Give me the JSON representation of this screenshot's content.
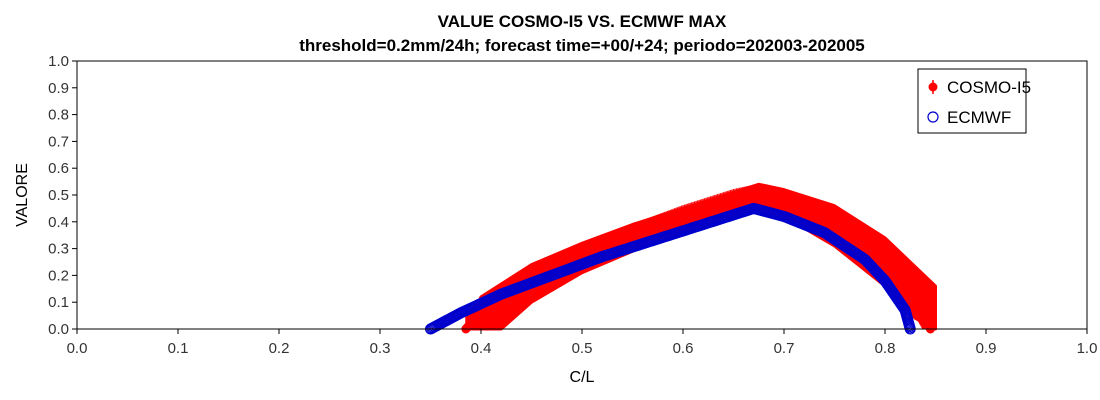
{
  "chart_data": {
    "type": "scatter",
    "title": "VALUE COSMO-I5 VS. ECMWF MAX",
    "subtitle": "threshold=0.2mm/24h; forecast time=+00/+24; periodo=202003-202005",
    "xlabel": "C/L",
    "ylabel": "VALORE",
    "xlim": [
      0.0,
      1.0
    ],
    "ylim": [
      0.0,
      1.0
    ],
    "xticks": [
      "0.0",
      "0.1",
      "0.2",
      "0.3",
      "0.4",
      "0.5",
      "0.6",
      "0.7",
      "0.8",
      "0.9",
      "1.0"
    ],
    "yticks": [
      "0.0",
      "0.1",
      "0.2",
      "0.3",
      "0.4",
      "0.5",
      "0.6",
      "0.7",
      "0.8",
      "0.9",
      "1.0"
    ],
    "grid": false,
    "legend_position": "top-right",
    "series": [
      {
        "name": "COSMO-I5",
        "color": "#ff0000",
        "marker": "filled-circle-with-errorbar",
        "points": [
          {
            "x": 0.385,
            "y": 0.0
          },
          {
            "x": 0.4,
            "y": 0.06
          },
          {
            "x": 0.42,
            "y": 0.11
          },
          {
            "x": 0.45,
            "y": 0.18
          },
          {
            "x": 0.5,
            "y": 0.27
          },
          {
            "x": 0.55,
            "y": 0.34
          },
          {
            "x": 0.6,
            "y": 0.41
          },
          {
            "x": 0.65,
            "y": 0.47
          },
          {
            "x": 0.675,
            "y": 0.49
          },
          {
            "x": 0.7,
            "y": 0.46
          },
          {
            "x": 0.75,
            "y": 0.38
          },
          {
            "x": 0.8,
            "y": 0.24
          },
          {
            "x": 0.83,
            "y": 0.1
          },
          {
            "x": 0.845,
            "y": 0.0
          }
        ],
        "upper": [
          {
            "x": 0.385,
            "y": 0.0
          },
          {
            "x": 0.4,
            "y": 0.12
          },
          {
            "x": 0.45,
            "y": 0.24
          },
          {
            "x": 0.5,
            "y": 0.32
          },
          {
            "x": 0.55,
            "y": 0.39
          },
          {
            "x": 0.6,
            "y": 0.45
          },
          {
            "x": 0.65,
            "y": 0.51
          },
          {
            "x": 0.675,
            "y": 0.54
          },
          {
            "x": 0.7,
            "y": 0.52
          },
          {
            "x": 0.75,
            "y": 0.46
          },
          {
            "x": 0.8,
            "y": 0.34
          },
          {
            "x": 0.85,
            "y": 0.16
          }
        ],
        "lower": [
          {
            "x": 0.42,
            "y": 0.0
          },
          {
            "x": 0.45,
            "y": 0.1
          },
          {
            "x": 0.5,
            "y": 0.21
          },
          {
            "x": 0.55,
            "y": 0.29
          },
          {
            "x": 0.6,
            "y": 0.36
          },
          {
            "x": 0.65,
            "y": 0.43
          },
          {
            "x": 0.675,
            "y": 0.46
          },
          {
            "x": 0.7,
            "y": 0.42
          },
          {
            "x": 0.75,
            "y": 0.31
          },
          {
            "x": 0.8,
            "y": 0.16
          },
          {
            "x": 0.83,
            "y": 0.04
          },
          {
            "x": 0.85,
            "y": 0.0
          }
        ]
      },
      {
        "name": "ECMWF",
        "color": "#0000cc",
        "marker": "open-circle",
        "points": [
          {
            "x": 0.35,
            "y": 0.0
          },
          {
            "x": 0.38,
            "y": 0.06
          },
          {
            "x": 0.42,
            "y": 0.13
          },
          {
            "x": 0.47,
            "y": 0.2
          },
          {
            "x": 0.52,
            "y": 0.27
          },
          {
            "x": 0.57,
            "y": 0.33
          },
          {
            "x": 0.62,
            "y": 0.39
          },
          {
            "x": 0.67,
            "y": 0.45
          },
          {
            "x": 0.7,
            "y": 0.42
          },
          {
            "x": 0.74,
            "y": 0.36
          },
          {
            "x": 0.78,
            "y": 0.26
          },
          {
            "x": 0.8,
            "y": 0.18
          },
          {
            "x": 0.82,
            "y": 0.07
          },
          {
            "x": 0.825,
            "y": 0.0
          }
        ]
      }
    ]
  }
}
